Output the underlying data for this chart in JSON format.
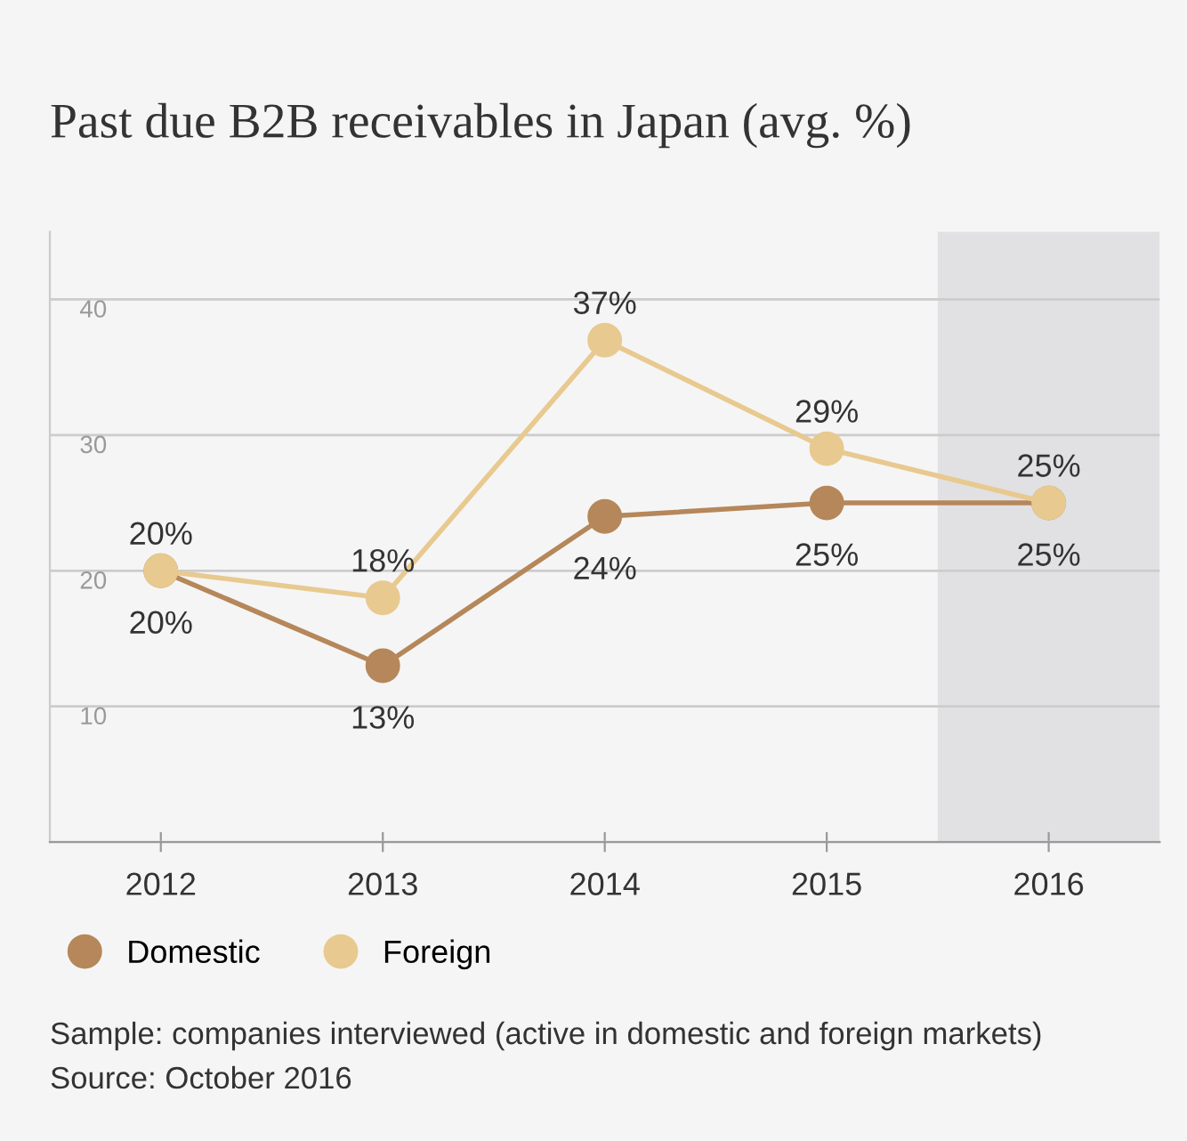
{
  "chart_data": {
    "type": "line",
    "title": "Past due B2B receivables in Japan (avg. %)",
    "categories": [
      "2012",
      "2013",
      "2014",
      "2015",
      "2016"
    ],
    "series": [
      {
        "name": "Domestic",
        "color": "#b5875a",
        "values": [
          20,
          13,
          24,
          25,
          25
        ],
        "value_labels": [
          "20%",
          "13%",
          "24%",
          "25%",
          "25%"
        ]
      },
      {
        "name": "Foreign",
        "color": "#e8c98f",
        "values": [
          20,
          18,
          37,
          29,
          25
        ],
        "value_labels": [
          "20%",
          "18%",
          "37%",
          "29%",
          "25%"
        ]
      }
    ],
    "ylim": [
      0,
      45
    ],
    "yticks": [
      {
        "value": 0,
        "label": null
      },
      10,
      20,
      30,
      40
    ],
    "grid": "y",
    "marker": "circle",
    "line_style": "solid",
    "legend": "bottom left",
    "bands": [
      {
        "axis": "x",
        "from": "2016",
        "to": "2016",
        "color": "#e1e1e3"
      }
    ],
    "annotations": [
      "Sample: companies interviewed (active in domestic and foreign markets)",
      "Source: October 2016"
    ]
  }
}
